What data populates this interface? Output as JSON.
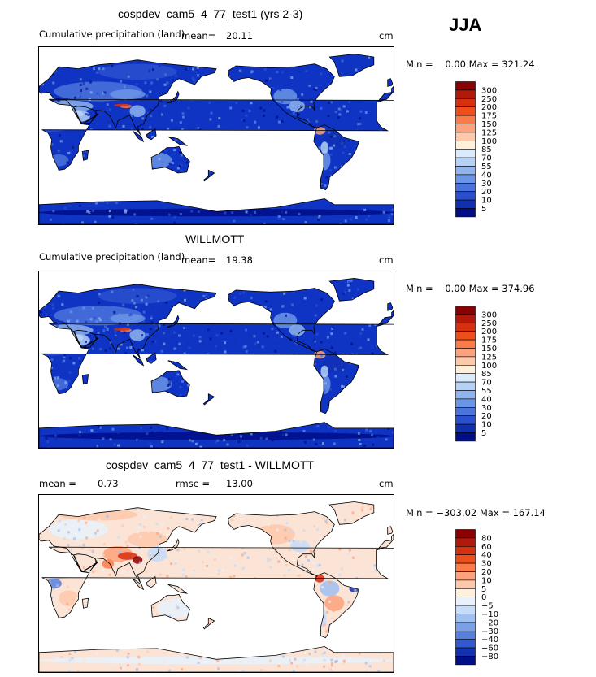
{
  "season": "JJA",
  "panels": [
    {
      "title": "cospdev_cam5_4_77_test1 (yrs 2-3)",
      "field": "Cumulative precipitation (land)",
      "mean_label": "mean=",
      "mean_value": "20.11",
      "units": "cm",
      "range_text": "Min =    0.00 Max = 321.24",
      "palette": "sequential"
    },
    {
      "title": "WILLMOTT",
      "field": "Cumulative precipitation (land)",
      "mean_label": "mean=",
      "mean_value": "19.38",
      "units": "cm",
      "range_text": "Min =    0.00 Max = 374.96",
      "palette": "sequential"
    },
    {
      "title": "cospdev_cam5_4_77_test1 - WILLMOTT",
      "mean_label": "mean =",
      "mean_value": "0.73",
      "rmse_label": "rmse =",
      "rmse_value": "13.00",
      "units": "cm",
      "range_text": "Min = −303.02 Max = 167.14",
      "palette": "diverging"
    }
  ],
  "chart_data": [
    {
      "type": "heatmap",
      "title": "cospdev_cam5_4_77_test1 (yrs 2-3)",
      "subtitle": "Cumulative precipitation (land)",
      "units": "cm",
      "mean": 20.11,
      "min": 0.0,
      "max": 321.24,
      "colorbar_levels": [
        "300",
        "250",
        "200",
        "175",
        "150",
        "125",
        "100",
        "85",
        "70",
        "55",
        "40",
        "30",
        "20",
        "10",
        "5"
      ],
      "colorbar_colors": [
        "#8b0000",
        "#b11a0a",
        "#d6300f",
        "#ee4f1a",
        "#fb7b48",
        "#fda27c",
        "#fec8aa",
        "#fff0dc",
        "#dcebfb",
        "#b5d2f6",
        "#8fb4ef",
        "#6b95e6",
        "#4a74dc",
        "#2a50ce",
        "#1030b4",
        "#000e88"
      ]
    },
    {
      "type": "heatmap",
      "title": "WILLMOTT",
      "subtitle": "Cumulative precipitation (land)",
      "units": "cm",
      "mean": 19.38,
      "min": 0.0,
      "max": 374.96,
      "colorbar_levels": [
        "300",
        "250",
        "200",
        "175",
        "150",
        "125",
        "100",
        "85",
        "70",
        "55",
        "40",
        "30",
        "20",
        "10",
        "5"
      ],
      "colorbar_colors": [
        "#8b0000",
        "#b11a0a",
        "#d6300f",
        "#ee4f1a",
        "#fb7b48",
        "#fda27c",
        "#fec8aa",
        "#fff0dc",
        "#dcebfb",
        "#b5d2f6",
        "#8fb4ef",
        "#6b95e6",
        "#4a74dc",
        "#2a50ce",
        "#1030b4",
        "#000e88"
      ]
    },
    {
      "type": "heatmap",
      "title": "cospdev_cam5_4_77_test1 - WILLMOTT",
      "units": "cm",
      "mean": 0.73,
      "rmse": 13.0,
      "min": -303.02,
      "max": 167.14,
      "colorbar_levels": [
        "80",
        "60",
        "40",
        "30",
        "20",
        "10",
        "5",
        "0",
        "−5",
        "−10",
        "−20",
        "−30",
        "−40",
        "−60",
        "−80"
      ],
      "colorbar_colors": [
        "#8b0000",
        "#b11a0a",
        "#d6300f",
        "#ee4f1a",
        "#fb7b48",
        "#fda27c",
        "#fec8aa",
        "#fff0dc",
        "#e8f1fc",
        "#c6dcf8",
        "#9fc0f1",
        "#7aa0e8",
        "#5680de",
        "#3358cf",
        "#1232b0",
        "#000e88"
      ]
    }
  ]
}
